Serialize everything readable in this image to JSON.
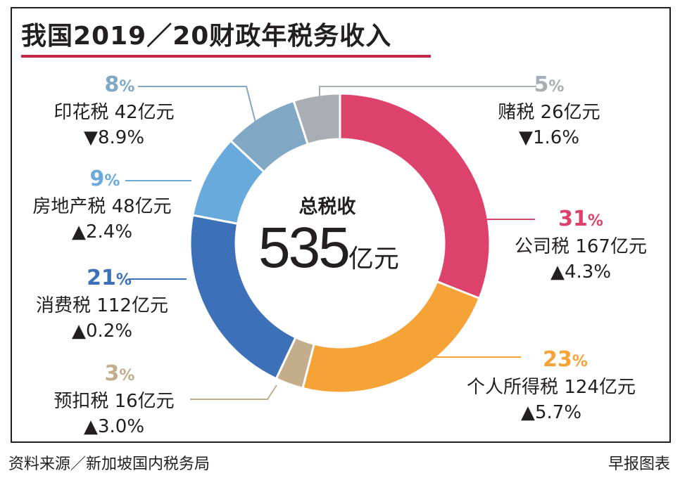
{
  "title": "我国2019／20财政年税务收入",
  "center": {
    "label": "总税收",
    "total": "535",
    "unit": "亿元"
  },
  "chart_data": {
    "type": "pie",
    "donut": true,
    "title": "我国2019／20财政年税务收入",
    "total_label": "总税收 535亿元",
    "slices": [
      {
        "key": "corporate",
        "name": "公司税",
        "percent": 31,
        "amount": "167亿元",
        "change": "▲4.3%",
        "color": "#dc426b"
      },
      {
        "key": "personal",
        "name": "个人所得税",
        "percent": 23,
        "amount": "124亿元",
        "change": "▲5.7%",
        "color": "#f5a236"
      },
      {
        "key": "withholding",
        "name": "预扣税",
        "percent": 3,
        "amount": "16亿元",
        "change": "▲3.0%",
        "color": "#c3ad8a"
      },
      {
        "key": "consumption",
        "name": "消费税",
        "percent": 21,
        "amount": "112亿元",
        "change": "▲0.2%",
        "color": "#3c70b8"
      },
      {
        "key": "property",
        "name": "房地产税",
        "percent": 9,
        "amount": "48亿元",
        "change": "▲2.4%",
        "color": "#69aadd"
      },
      {
        "key": "stamp",
        "name": "印花税",
        "percent": 8,
        "amount": "42亿元",
        "change": "▼8.9%",
        "color": "#80a8c4"
      },
      {
        "key": "betting",
        "name": "赌税",
        "percent": 5,
        "amount": "26亿元",
        "change": "▼1.6%",
        "color": "#a8aeb3"
      }
    ]
  },
  "footer": {
    "source": "资料来源／新加坡国内税务局",
    "credit": "早报图表"
  }
}
